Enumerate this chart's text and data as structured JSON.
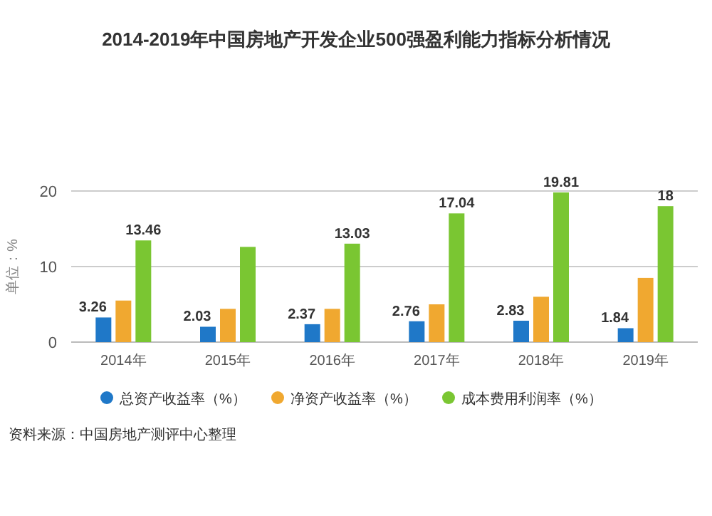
{
  "chart_data": {
    "type": "bar",
    "title": "2014-2019年中国房地产开发企业500强盈利能力指标分析情况",
    "ylabel": "单位：%",
    "categories": [
      "2014年",
      "2015年",
      "2016年",
      "2017年",
      "2018年",
      "2019年"
    ],
    "series": [
      {
        "name": "总资产收益率（%）",
        "color": "#1f78c8",
        "values": [
          3.26,
          2.03,
          2.37,
          2.76,
          2.83,
          1.84
        ],
        "value_labels": [
          "3.26",
          "2.03",
          "2.37",
          "2.76",
          "2.83",
          "1.84"
        ]
      },
      {
        "name": "净资产收益率（%）",
        "color": "#f0a830",
        "values": [
          5.5,
          4.4,
          4.4,
          5.0,
          6.0,
          8.5
        ]
      },
      {
        "name": "成本费用利润率（%）",
        "color": "#7ac632",
        "values": [
          13.46,
          12.6,
          13.03,
          17.04,
          19.81,
          18
        ],
        "value_labels": [
          "13.46",
          null,
          "13.03",
          "17.04",
          "19.81",
          "18"
        ]
      }
    ],
    "ylim": [
      0,
      20
    ],
    "yticks": [
      0,
      10,
      20
    ],
    "grid": "y",
    "legend": "bottom",
    "annotations": [
      "资料来源：中国房地产测评中心整理"
    ]
  }
}
